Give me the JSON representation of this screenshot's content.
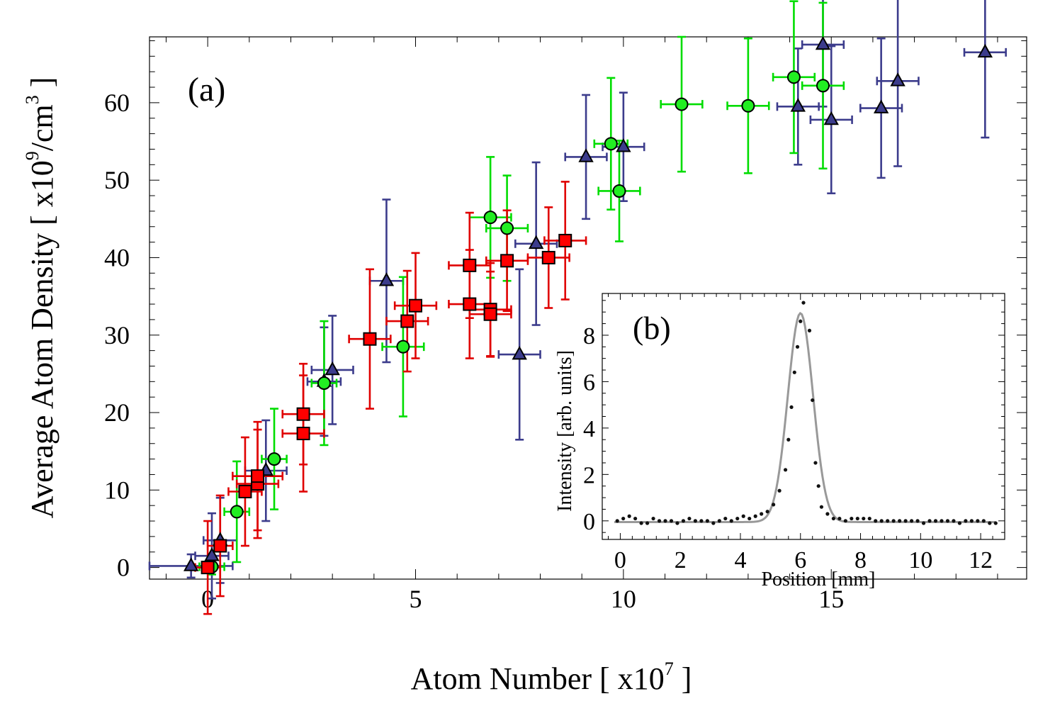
{
  "chart_data": [
    {
      "type": "scatter",
      "panel_label": "(a)",
      "xlabel_text": "Atom Number [ x10",
      "xlabel_exponent": "7",
      "xlabel_close": " ]",
      "ylabel_text": "Average Atom Density [ x10",
      "ylabel_exponent": "9",
      "ylabel_unit": "/cm",
      "ylabel_unit_exponent": "3",
      "ylabel_close": " ]",
      "xlim": [
        -1.4,
        19.7
      ],
      "ylim": [
        -1.5,
        68.5
      ],
      "xticks": [
        0,
        5,
        10,
        15
      ],
      "xtick_labels": [
        "0",
        "5",
        "10",
        "15"
      ],
      "yticks": [
        0,
        10,
        20,
        30,
        40,
        50,
        60
      ],
      "ytick_labels": [
        "0",
        "10",
        "20",
        "30",
        "40",
        "50",
        "60"
      ],
      "series": [
        {
          "name": "triangles",
          "marker": "triangle",
          "color": "#3c3c8c",
          "fill": "#3c3c8c",
          "points": [
            {
              "x": -0.4,
              "y": 0.2,
              "xerr": 1.0,
              "yerr": 1.5
            },
            {
              "x": 0.1,
              "y": 1.5,
              "xerr": 0.4,
              "yerr": 5.5
            },
            {
              "x": 0.3,
              "y": 3.5,
              "xerr": 0.4,
              "yerr": 5.5
            },
            {
              "x": 1.4,
              "y": 12.5,
              "xerr": 0.5,
              "yerr": 6.5
            },
            {
              "x": 2.8,
              "y": 24.0,
              "xerr": 0.4,
              "yerr": 7.0
            },
            {
              "x": 3.0,
              "y": 25.5,
              "xerr": 0.5,
              "yerr": 7.0
            },
            {
              "x": 4.3,
              "y": 37.0,
              "xerr": 0.4,
              "yerr": 10.5
            },
            {
              "x": 7.5,
              "y": 27.5,
              "xerr": 0.5,
              "yerr": 11.0
            },
            {
              "x": 7.9,
              "y": 41.8,
              "xerr": 0.5,
              "yerr": 10.5
            },
            {
              "x": 9.1,
              "y": 53.0,
              "xerr": 0.5,
              "yerr": 8.0
            },
            {
              "x": 10.0,
              "y": 54.3,
              "xerr": 0.5,
              "yerr": 7.0
            },
            {
              "x": 14.2,
              "y": 59.5,
              "xerr": 0.5,
              "yerr": 7.5
            },
            {
              "x": 14.8,
              "y": 67.5,
              "xerr": 0.5,
              "yerr": 8.0
            },
            {
              "x": 15.0,
              "y": 57.8,
              "xerr": 0.5,
              "yerr": 9.5
            },
            {
              "x": 16.2,
              "y": 59.3,
              "xerr": 0.5,
              "yerr": 9.0
            },
            {
              "x": 16.6,
              "y": 62.8,
              "xerr": 0.5,
              "yerr": 11.0
            },
            {
              "x": 18.7,
              "y": 66.5,
              "xerr": 0.5,
              "yerr": 11.0
            }
          ]
        },
        {
          "name": "circles",
          "marker": "circle",
          "color": "#00dd00",
          "fill": "#22ee22",
          "points": [
            {
              "x": 0.1,
              "y": 0.1,
              "xerr": 0.3,
              "yerr": 1.0
            },
            {
              "x": 0.7,
              "y": 7.2,
              "xerr": 0.3,
              "yerr": 6.5
            },
            {
              "x": 1.6,
              "y": 14.0,
              "xerr": 0.3,
              "yerr": 6.5
            },
            {
              "x": 2.8,
              "y": 23.8,
              "xerr": 0.3,
              "yerr": 8.0
            },
            {
              "x": 4.7,
              "y": 28.5,
              "xerr": 0.5,
              "yerr": 9.0
            },
            {
              "x": 6.8,
              "y": 45.2,
              "xerr": 0.5,
              "yerr": 7.8
            },
            {
              "x": 7.2,
              "y": 43.8,
              "xerr": 0.5,
              "yerr": 6.8
            },
            {
              "x": 9.7,
              "y": 54.7,
              "xerr": 0.4,
              "yerr": 8.5
            },
            {
              "x": 9.9,
              "y": 48.6,
              "xerr": 0.5,
              "yerr": 6.5
            },
            {
              "x": 11.4,
              "y": 59.8,
              "xerr": 0.5,
              "yerr": 8.7
            },
            {
              "x": 13.0,
              "y": 59.6,
              "xerr": 0.5,
              "yerr": 8.7
            },
            {
              "x": 14.1,
              "y": 63.3,
              "xerr": 0.5,
              "yerr": 9.8
            },
            {
              "x": 14.8,
              "y": 62.2,
              "xerr": 0.5,
              "yerr": 10.7
            }
          ]
        },
        {
          "name": "squares",
          "marker": "square",
          "color": "#e00000",
          "fill": "#ff0000",
          "points": [
            {
              "x": 0.0,
              "y": 0.0,
              "xerr": 0.3,
              "yerr": 6.0
            },
            {
              "x": 0.3,
              "y": 2.8,
              "xerr": 0.3,
              "yerr": 6.5
            },
            {
              "x": 0.9,
              "y": 9.8,
              "xerr": 0.4,
              "yerr": 7.0
            },
            {
              "x": 1.2,
              "y": 10.8,
              "xerr": 0.5,
              "yerr": 7.0
            },
            {
              "x": 1.2,
              "y": 11.8,
              "xerr": 0.6,
              "yerr": 7.0
            },
            {
              "x": 2.3,
              "y": 19.8,
              "xerr": 0.5,
              "yerr": 6.5
            },
            {
              "x": 2.3,
              "y": 17.3,
              "xerr": 0.5,
              "yerr": 7.5
            },
            {
              "x": 3.9,
              "y": 29.5,
              "xerr": 0.5,
              "yerr": 9.0
            },
            {
              "x": 4.8,
              "y": 31.8,
              "xerr": 0.5,
              "yerr": 6.5
            },
            {
              "x": 5.0,
              "y": 33.8,
              "xerr": 0.5,
              "yerr": 6.8
            },
            {
              "x": 6.3,
              "y": 39.0,
              "xerr": 0.5,
              "yerr": 6.8
            },
            {
              "x": 6.3,
              "y": 34.0,
              "xerr": 0.5,
              "yerr": 7.0
            },
            {
              "x": 6.8,
              "y": 33.3,
              "xerr": 0.5,
              "yerr": 6.0
            },
            {
              "x": 6.8,
              "y": 32.7,
              "xerr": 0.5,
              "yerr": 5.5
            },
            {
              "x": 7.2,
              "y": 39.6,
              "xerr": 0.5,
              "yerr": 6.5
            },
            {
              "x": 8.2,
              "y": 40.0,
              "xerr": 0.5,
              "yerr": 6.5
            },
            {
              "x": 8.6,
              "y": 42.2,
              "xerr": 0.5,
              "yerr": 7.6
            }
          ]
        }
      ]
    },
    {
      "type": "line",
      "panel_label": "(b)",
      "xlabel": "Position [mm]",
      "ylabel": "Intensity [arb. units]",
      "xlim": [
        -0.6,
        12.8
      ],
      "ylim": [
        -0.8,
        9.8
      ],
      "xticks": [
        0,
        2,
        4,
        6,
        8,
        10,
        12
      ],
      "xtick_labels": [
        "0",
        "2",
        "4",
        "6",
        "8",
        "10",
        "12"
      ],
      "yticks": [
        0,
        2,
        4,
        6,
        8
      ],
      "ytick_labels": [
        "0",
        "2",
        "4",
        "6",
        "8"
      ],
      "fit_curve": {
        "function": "gaussian",
        "amplitude": 9.0,
        "center": 6.0,
        "sigma": 0.42,
        "offset": -0.05,
        "color": "#999999"
      },
      "points_color": "#111111",
      "points": [
        {
          "x": -0.1,
          "y": 0.0
        },
        {
          "x": 0.1,
          "y": 0.1
        },
        {
          "x": 0.3,
          "y": 0.2
        },
        {
          "x": 0.5,
          "y": 0.1
        },
        {
          "x": 0.7,
          "y": -0.1
        },
        {
          "x": 0.9,
          "y": -0.1
        },
        {
          "x": 1.1,
          "y": 0.1
        },
        {
          "x": 1.3,
          "y": 0.0
        },
        {
          "x": 1.5,
          "y": 0.0
        },
        {
          "x": 1.7,
          "y": 0.0
        },
        {
          "x": 1.9,
          "y": -0.1
        },
        {
          "x": 2.1,
          "y": 0.0
        },
        {
          "x": 2.3,
          "y": 0.1
        },
        {
          "x": 2.5,
          "y": 0.0
        },
        {
          "x": 2.7,
          "y": 0.0
        },
        {
          "x": 2.9,
          "y": 0.0
        },
        {
          "x": 3.1,
          "y": -0.1
        },
        {
          "x": 3.3,
          "y": 0.0
        },
        {
          "x": 3.5,
          "y": 0.1
        },
        {
          "x": 3.7,
          "y": 0.0
        },
        {
          "x": 3.9,
          "y": 0.1
        },
        {
          "x": 4.1,
          "y": 0.2
        },
        {
          "x": 4.3,
          "y": 0.1
        },
        {
          "x": 4.5,
          "y": 0.2
        },
        {
          "x": 4.7,
          "y": 0.3
        },
        {
          "x": 4.9,
          "y": 0.4
        },
        {
          "x": 5.1,
          "y": 0.7
        },
        {
          "x": 5.3,
          "y": 1.3
        },
        {
          "x": 5.5,
          "y": 2.2
        },
        {
          "x": 5.6,
          "y": 3.5
        },
        {
          "x": 5.7,
          "y": 4.9
        },
        {
          "x": 5.8,
          "y": 6.4
        },
        {
          "x": 5.9,
          "y": 7.5
        },
        {
          "x": 6.0,
          "y": 8.6
        },
        {
          "x": 6.1,
          "y": 9.4
        },
        {
          "x": 6.3,
          "y": 8.2
        },
        {
          "x": 6.4,
          "y": 5.2
        },
        {
          "x": 6.5,
          "y": 2.5
        },
        {
          "x": 6.6,
          "y": 1.5
        },
        {
          "x": 6.7,
          "y": 0.6
        },
        {
          "x": 6.9,
          "y": 0.3
        },
        {
          "x": 7.1,
          "y": 0.1
        },
        {
          "x": 7.3,
          "y": 0.1
        },
        {
          "x": 7.5,
          "y": 0.0
        },
        {
          "x": 7.7,
          "y": 0.1
        },
        {
          "x": 7.9,
          "y": 0.1
        },
        {
          "x": 8.1,
          "y": 0.1
        },
        {
          "x": 8.3,
          "y": 0.1
        },
        {
          "x": 8.5,
          "y": 0.0
        },
        {
          "x": 8.7,
          "y": 0.0
        },
        {
          "x": 8.9,
          "y": 0.0
        },
        {
          "x": 9.1,
          "y": 0.0
        },
        {
          "x": 9.3,
          "y": 0.0
        },
        {
          "x": 9.5,
          "y": 0.0
        },
        {
          "x": 9.7,
          "y": 0.0
        },
        {
          "x": 9.9,
          "y": 0.0
        },
        {
          "x": 10.1,
          "y": -0.1
        },
        {
          "x": 10.3,
          "y": 0.0
        },
        {
          "x": 10.5,
          "y": 0.0
        },
        {
          "x": 10.7,
          "y": 0.0
        },
        {
          "x": 10.9,
          "y": 0.0
        },
        {
          "x": 11.1,
          "y": 0.0
        },
        {
          "x": 11.3,
          "y": -0.1
        },
        {
          "x": 11.5,
          "y": 0.0
        },
        {
          "x": 11.7,
          "y": 0.0
        },
        {
          "x": 11.9,
          "y": 0.0
        },
        {
          "x": 12.1,
          "y": 0.0
        },
        {
          "x": 12.3,
          "y": -0.1
        },
        {
          "x": 12.5,
          "y": -0.1
        }
      ]
    }
  ]
}
